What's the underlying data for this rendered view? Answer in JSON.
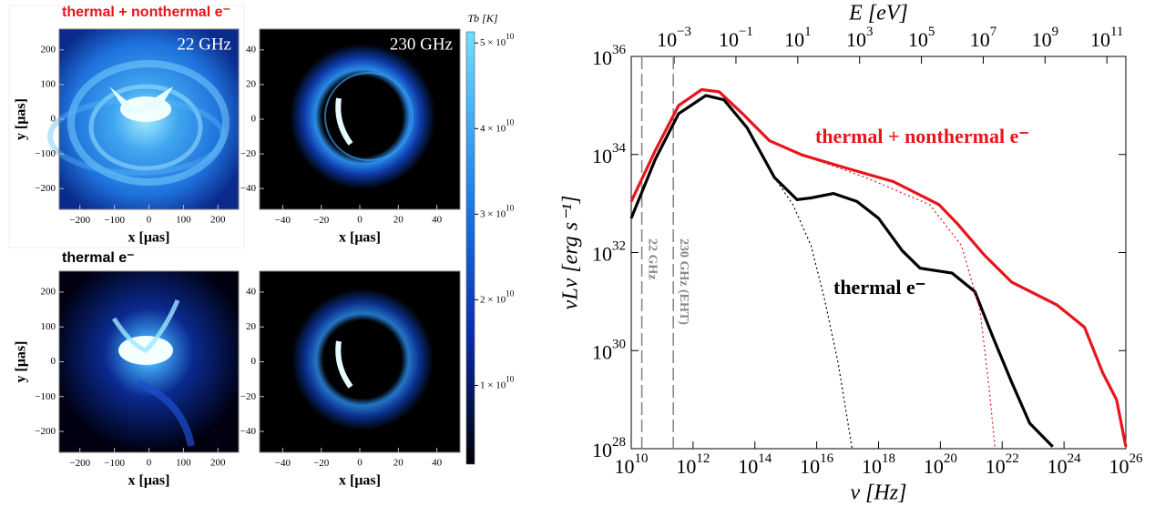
{
  "row_titles": [
    {
      "text": "thermal + nonthermal e⁻",
      "color": "#e8141a"
    },
    {
      "text": "thermal e⁻",
      "color": "#000000"
    }
  ],
  "chart_data": [
    {
      "type": "image",
      "label": "22 GHz",
      "xlabel": "x [μas]",
      "ylabel": "y [μas]",
      "xlim": [
        -260,
        260
      ],
      "ylim": [
        -260,
        260
      ],
      "xticks": [
        {
          "value": -200,
          "label": "−200"
        },
        {
          "value": -100,
          "label": "−100"
        },
        0,
        100,
        200
      ],
      "yticks": [
        {
          "value": -200,
          "label": "−200"
        },
        {
          "value": -100,
          "label": "−100"
        },
        0,
        100,
        200
      ]
    },
    {
      "type": "image",
      "label": "230 GHz",
      "xlabel": "x [μas]",
      "xlim": [
        -52,
        52
      ],
      "ylim": [
        -52,
        52
      ],
      "xticks": [
        {
          "value": -40,
          "label": "−40"
        },
        {
          "value": -20,
          "label": "−20"
        },
        0,
        20,
        40
      ],
      "yticks": [
        {
          "value": -40,
          "label": "−40"
        },
        {
          "value": -20,
          "label": "−20"
        },
        0,
        20,
        40
      ]
    },
    {
      "type": "image",
      "xlabel": "x [μas]",
      "ylabel": "y [μas]",
      "xlim": [
        -260,
        260
      ],
      "ylim": [
        -260,
        260
      ],
      "xticks": [
        {
          "value": -200,
          "label": "−200"
        },
        {
          "value": -100,
          "label": "−100"
        },
        0,
        100,
        200
      ],
      "yticks": [
        {
          "value": -200,
          "label": "−200"
        },
        {
          "value": -100,
          "label": "−100"
        },
        0,
        100,
        200
      ]
    },
    {
      "type": "image",
      "xlabel": "x [μas]",
      "xlim": [
        -52,
        52
      ],
      "ylim": [
        -52,
        52
      ],
      "xticks": [
        {
          "value": -40,
          "label": "−40"
        },
        {
          "value": -20,
          "label": "−20"
        },
        0,
        20,
        40
      ],
      "yticks": [
        {
          "value": -40,
          "label": "−40"
        },
        {
          "value": -20,
          "label": "−20"
        },
        0,
        20,
        40
      ]
    },
    {
      "type": "colorbar",
      "title": "Tb [K]",
      "ylim": [
        800000000,
        51300000000
      ],
      "yticks": [
        {
          "value": 10000000000,
          "label": "1 × 10",
          "exponent": "10"
        },
        {
          "value": 20000000000,
          "label": "2 × 10",
          "exponent": "10"
        },
        {
          "value": 30000000000,
          "label": "3 × 10",
          "exponent": "10"
        },
        {
          "value": 40000000000,
          "label": "4 × 10",
          "exponent": "10"
        },
        {
          "value": 50000000000,
          "label": "5 × 10",
          "exponent": "10"
        }
      ]
    },
    {
      "type": "line",
      "xlabel": "ν [Hz]",
      "ylabel": "νLν [erg s⁻¹]",
      "x2label": "E [eV]",
      "xscale": "log",
      "yscale": "log",
      "xlim": [
        10000000000.0,
        1e+26
      ],
      "ylim": [
        1e+28,
        1e+36
      ],
      "x2lim": [
        4.1e-05,
        410000000000.0
      ],
      "xticks": [
        {
          "value": 10000000000.0,
          "label": "10",
          "exponent": "10"
        },
        {
          "value": 1000000000000.0,
          "label": "10",
          "exponent": "12"
        },
        {
          "value": 100000000000000.0,
          "label": "10",
          "exponent": "14"
        },
        {
          "value": 1e+16,
          "label": "10",
          "exponent": "16"
        },
        {
          "value": 1e+18,
          "label": "10",
          "exponent": "18"
        },
        {
          "value": 1e+20,
          "label": "10",
          "exponent": "20"
        },
        {
          "value": 1e+22,
          "label": "10",
          "exponent": "22"
        },
        {
          "value": 1e+24,
          "label": "10",
          "exponent": "24"
        },
        {
          "value": 1e+26,
          "label": "10",
          "exponent": "26"
        }
      ],
      "yticks": [
        {
          "value": 1e+28,
          "label": "10",
          "exponent": "28"
        },
        {
          "value": 1e+30,
          "label": "10",
          "exponent": "30"
        },
        {
          "value": 1e+32,
          "label": "10",
          "exponent": "32"
        },
        {
          "value": 1e+34,
          "label": "10",
          "exponent": "34"
        },
        {
          "value": 1e+36,
          "label": "10",
          "exponent": "36"
        }
      ],
      "x2ticks": [
        {
          "value": 0.001,
          "label": "10",
          "exponent": "−3"
        },
        {
          "value": 0.1,
          "label": "10",
          "exponent": "−1"
        },
        {
          "value": 10,
          "label": "10",
          "exponent": "1"
        },
        {
          "value": 1000,
          "label": "10",
          "exponent": "3"
        },
        {
          "value": 100000,
          "label": "10",
          "exponent": "5"
        },
        {
          "value": 10000000,
          "label": "10",
          "exponent": "7"
        },
        {
          "value": 1000000000,
          "label": "10",
          "exponent": "9"
        },
        {
          "value": 100000000000,
          "label": "10",
          "exponent": "11"
        }
      ],
      "vlines": [
        {
          "x": 22000000000.0,
          "label": "22 GHz"
        },
        {
          "x": 230000000000.0,
          "label": "230 GHz (EHT)"
        }
      ],
      "series": [
        {
          "name": "thermal + nonthermal e⁻",
          "color": "#e8141a",
          "linestyle": "solid",
          "x": [
            10000000000.0,
            60000000000.0,
            340000000000.0,
            1900000000000.0,
            7000000000000.0,
            40000000000000.0,
            300000000000000.0,
            3300000000000000.0,
            1e+17,
            3e+18,
            9e+19,
            3.4e+20,
            2.6e+21,
            2e+22,
            6e+23,
            4.6e+24,
            1.8e+25,
            5e+25,
            1e+26
          ],
          "values": [
            1.1e+33,
            1.2e+34,
            1e+35,
            2.1e+35,
            1.9e+35,
            6.8e+34,
            1.9e+34,
            9.8e+33,
            5.2e+33,
            2.8e+33,
            9.5e+32,
            4e+32,
            9e+31,
            2.5e+31,
            8.5e+30,
            3e+30,
            3.5e+29,
            1e+29,
            1.1e+28
          ]
        },
        {
          "name": "thermal e⁻",
          "color": "#000000",
          "linestyle": "solid",
          "x": [
            10000000000.0,
            60000000000.0,
            340000000000.0,
            2600000000000.0,
            10000000000000.0,
            56000000000000.0,
            430000000000000.0,
            2300000000000000.0,
            6500000000000000.0,
            3.5e+16,
            2e+17,
            1e+18,
            5.8e+18,
            2.2e+19,
            2.4e+20,
            1.3e+21,
            5e+21,
            2e+22,
            7.8e+22,
            4.3e+23
          ],
          "values": [
            5e+32,
            8e+33,
            6.8e+34,
            1.6e+35,
            1.3e+35,
            3.5e+34,
            3.4e+33,
            1.2e+33,
            1.3e+33,
            1.6e+33,
            1.1e+33,
            5e+32,
            1.1e+32,
            4.8e+31,
            3.8e+31,
            1.6e+31,
            1.9e+30,
            2.3e+29,
            3.3e+28,
            1.1e+28
          ]
        },
        {
          "color": "#e8141a",
          "linestyle": "dotted",
          "x": [
            3300000000000000.0,
            3.8e+17,
            4.5e+19,
            4.8e+20,
            1.9e+21,
            3.6e+21,
            5.9e+21
          ],
          "values": [
            9.8e+33,
            3.4e+33,
            9.5e+32,
            1.4e+32,
            6.9e+30,
            2.3e+29,
            1e+28
          ]
        },
        {
          "color": "#000000",
          "linestyle": "dotted",
          "x": [
            430000000000000.0,
            1700000000000000.0,
            6500000000000000.0,
            1.8e+16,
            5e+16,
            1.4e+17
          ],
          "values": [
            3.4e+33,
            9.5e+32,
            1.4e+32,
            1.1e+31,
            5.4e+29,
            1e+28
          ]
        }
      ]
    }
  ]
}
